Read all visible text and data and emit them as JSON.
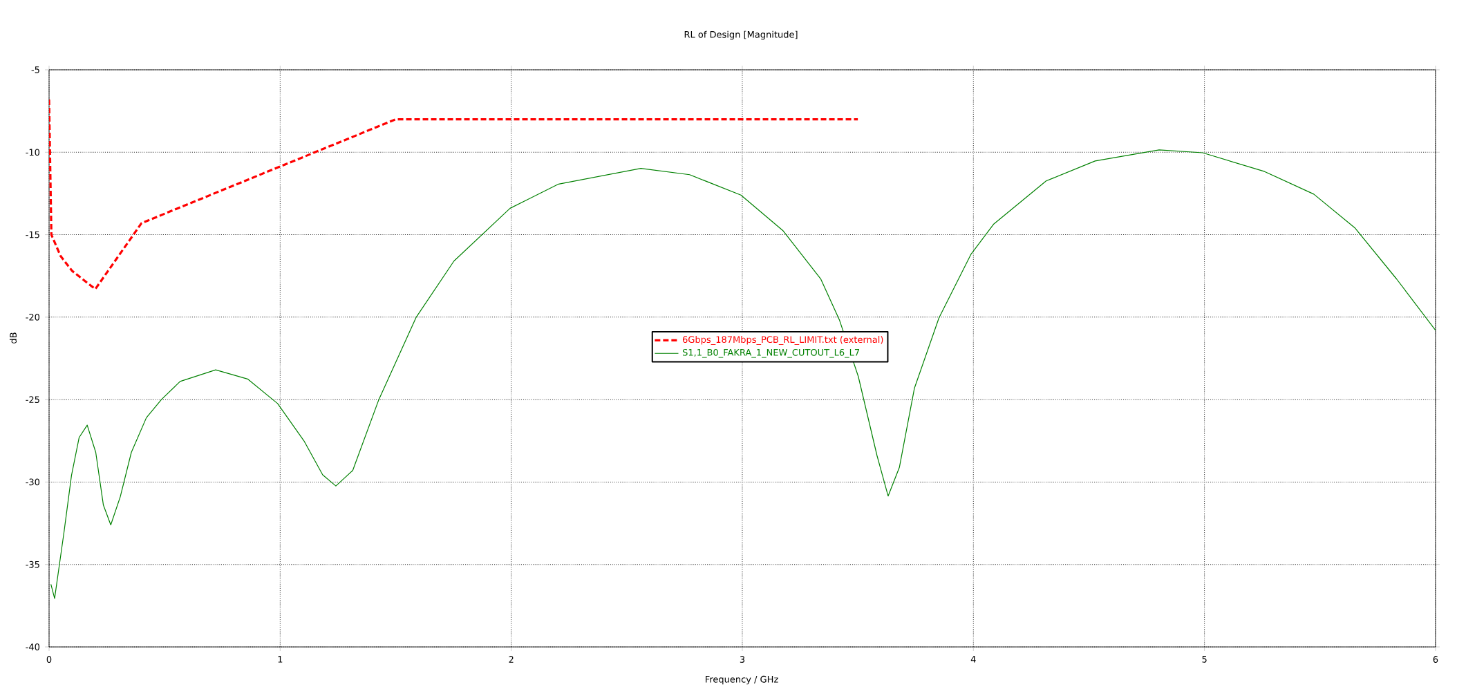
{
  "chart_data": {
    "type": "line",
    "title": "RL of Design [Magnitude]",
    "xlabel": "Frequency / GHz",
    "ylabel": "dB",
    "xlim": [
      0,
      6
    ],
    "ylim": [
      -40,
      -5
    ],
    "xticks": [
      0,
      1,
      2,
      3,
      4,
      5,
      6
    ],
    "yticks": [
      -40,
      -35,
      -30,
      -25,
      -20,
      -15,
      -10,
      -5
    ],
    "grid": true,
    "legend": "center",
    "series": [
      {
        "name": "6Gbps_187Mbps_PCB_RL_LIMIT.txt (external)",
        "color": "#ff0000",
        "line_style": "dashed",
        "x": [
          0.0,
          0.01,
          0.05,
          0.1,
          0.2,
          0.4,
          1.5,
          3.5
        ],
        "values": [
          -6.8,
          -15.0,
          -16.3,
          -17.2,
          -18.3,
          -14.3,
          -8.0,
          -8.0
        ]
      },
      {
        "name": "S1,1_B0_FAKRA_1_NEW_CUTOUT_L6_L7",
        "color": "#008000",
        "line_style": "solid",
        "x": [
          0.008,
          0.024,
          0.065,
          0.097,
          0.13,
          0.165,
          0.202,
          0.235,
          0.267,
          0.308,
          0.356,
          0.421,
          0.486,
          0.567,
          0.721,
          0.859,
          0.989,
          1.103,
          1.184,
          1.241,
          1.314,
          1.427,
          1.589,
          1.752,
          1.995,
          2.205,
          2.561,
          2.772,
          2.994,
          3.177,
          3.34,
          3.421,
          3.502,
          3.583,
          3.631,
          3.68,
          3.745,
          3.851,
          3.989,
          4.087,
          4.315,
          4.527,
          4.804,
          4.992,
          5.26,
          5.473,
          5.652,
          5.831,
          6.0
        ],
        "values": [
          -36.2,
          -37.06,
          -33.0,
          -29.6,
          -27.3,
          -26.55,
          -28.2,
          -31.4,
          -32.6,
          -30.9,
          -28.2,
          -26.1,
          -25.0,
          -23.9,
          -23.2,
          -23.75,
          -25.24,
          -27.5,
          -29.56,
          -30.24,
          -29.3,
          -25.0,
          -20.0,
          -16.6,
          -13.4,
          -11.93,
          -10.98,
          -11.36,
          -12.6,
          -14.77,
          -17.7,
          -20.2,
          -23.6,
          -28.4,
          -30.85,
          -29.1,
          -24.3,
          -20.05,
          -16.2,
          -14.37,
          -11.74,
          -10.53,
          -9.86,
          -10.03,
          -11.17,
          -12.54,
          -14.6,
          -17.68,
          -20.8
        ]
      }
    ]
  }
}
